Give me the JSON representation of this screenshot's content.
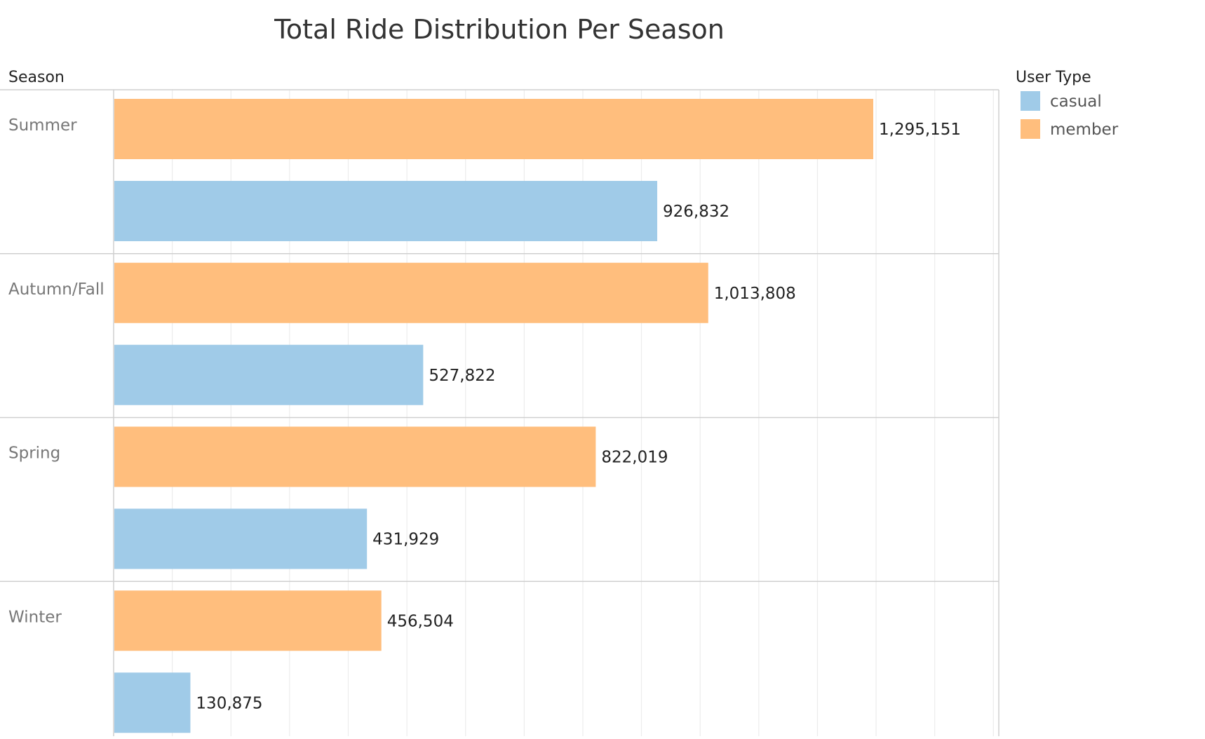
{
  "chart_data": {
    "type": "bar",
    "orientation": "horizontal",
    "title": "Total Ride Distribution Per Season",
    "row_header": "Season",
    "categories": [
      "Summer",
      "Autumn/Fall",
      "Spring",
      "Winter"
    ],
    "series": [
      {
        "name": "member",
        "color": "#ffbe7d",
        "values": [
          1295151,
          1013808,
          822019,
          456504
        ]
      },
      {
        "name": "casual",
        "color": "#a0cbe8",
        "values": [
          926832,
          527822,
          431929,
          130875
        ]
      }
    ],
    "data_labels": {
      "member": [
        "1,295,151",
        "1,013,808",
        "822,019",
        "456,504"
      ],
      "casual": [
        "926,832",
        "527,822",
        "431,929",
        "130,875"
      ]
    },
    "xlim": [
      0,
      1500000
    ],
    "grid": true,
    "legend": {
      "title": "User Type",
      "position": "top-right",
      "entries": [
        {
          "label": "casual",
          "color": "#a0cbe8"
        },
        {
          "label": "member",
          "color": "#ffbe7d"
        }
      ]
    }
  }
}
